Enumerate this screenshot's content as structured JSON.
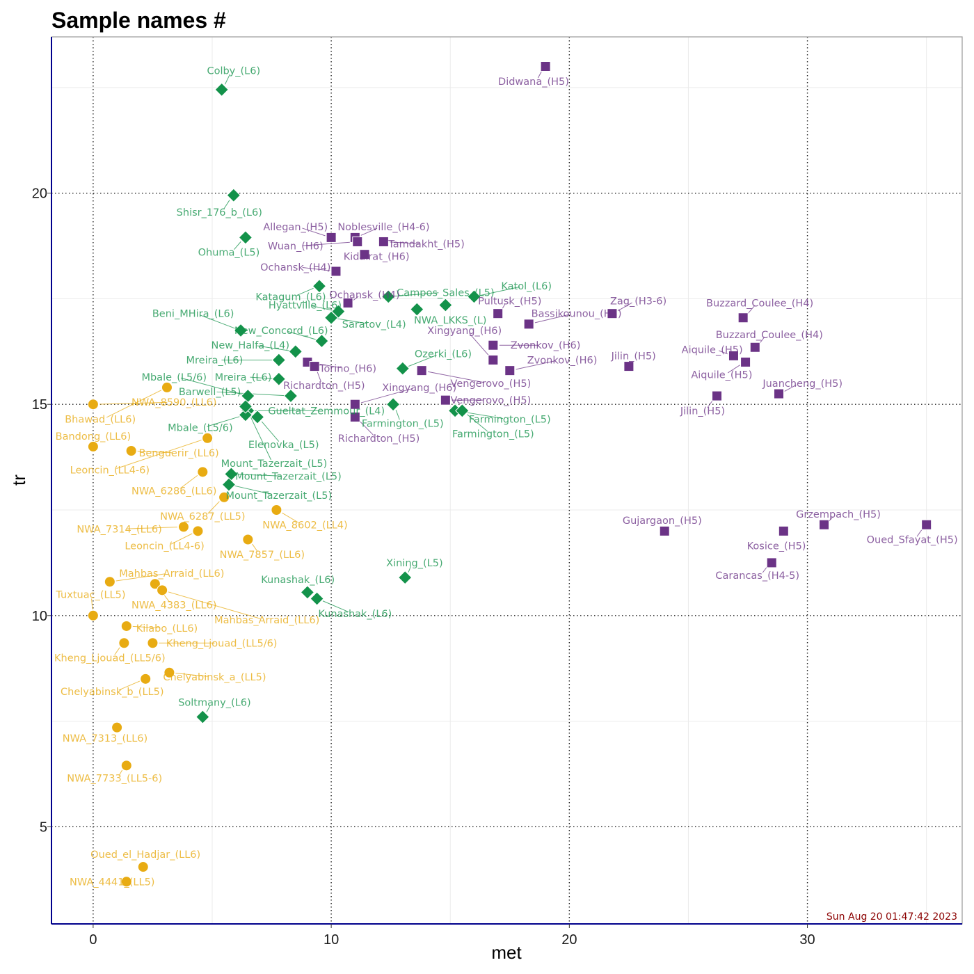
{
  "chart_data": {
    "type": "scatter",
    "title": "Sample names #",
    "xlabel": "met",
    "ylabel": "tr",
    "xlim": [
      -1.75,
      36.5
    ],
    "ylim": [
      2.7,
      23.7
    ],
    "x_ticks": [
      0,
      10,
      20,
      30
    ],
    "y_ticks": [
      5,
      10,
      15,
      20
    ],
    "grid": true,
    "legend": "none",
    "footer": "Sun Aug 20 01:47:42 2023",
    "colors": {
      "LL": "#e8ab12",
      "L": "#13924a",
      "H": "#6b3386"
    },
    "series": [
      {
        "group": "LL",
        "marker": "circle",
        "points": [
          {
            "x": 0.0,
            "y": 15.0,
            "label": "NWA_8590_(LL6)",
            "lx": 3.4,
            "ly": 15.05
          },
          {
            "x": 3.1,
            "y": 15.4,
            "label": "Bhawad_(LL6)",
            "lx": 0.3,
            "ly": 14.65
          },
          {
            "x": 0.0,
            "y": 14.0,
            "label": "Bandong_(LL6)",
            "lx": 0.0,
            "ly": 14.25
          },
          {
            "x": 1.6,
            "y": 13.9,
            "label": "Benguerir_(LL6)",
            "lx": 3.6,
            "ly": 13.85
          },
          {
            "x": 4.8,
            "y": 14.2,
            "label": "Leoncin_(LL4-6)",
            "lx": 0.7,
            "ly": 13.45
          },
          {
            "x": 4.6,
            "y": 13.4,
            "label": "NWA_6286_(LL6)",
            "lx": 3.4,
            "ly": 12.95
          },
          {
            "x": 5.5,
            "y": 12.8,
            "label": "NWA_6287_(LL5)",
            "lx": 4.6,
            "ly": 12.35
          },
          {
            "x": 7.7,
            "y": 12.5,
            "label": "NWA_8602_(LL4)",
            "lx": 8.9,
            "ly": 12.15
          },
          {
            "x": 3.8,
            "y": 12.1,
            "label": "NWA_7314_(LL6)",
            "lx": 1.1,
            "ly": 12.05
          },
          {
            "x": 4.4,
            "y": 12.0,
            "label": "Leoncin_(LL4-6)",
            "lx": 3.0,
            "ly": 11.65
          },
          {
            "x": 6.5,
            "y": 11.8,
            "label": "NWA_7857_(LL6)",
            "lx": 7.1,
            "ly": 11.45
          },
          {
            "x": 0.7,
            "y": 10.8,
            "label": "Mahbas_Arraid_(LL6)",
            "lx": 3.3,
            "ly": 11.0
          },
          {
            "x": 2.6,
            "y": 10.75,
            "label": "NWA_4383_(LL6)",
            "lx": 3.4,
            "ly": 10.25
          },
          {
            "x": 2.9,
            "y": 10.6,
            "label": "Mahbas_Arraid_(LL6)",
            "lx": 7.3,
            "ly": 9.9
          },
          {
            "x": 0.0,
            "y": 10.0,
            "label": "Tuxtuac_(LL5)",
            "lx": -0.1,
            "ly": 10.5
          },
          {
            "x": 1.4,
            "y": 9.75,
            "label": "Kilabo_(LL6)",
            "lx": 3.1,
            "ly": 9.7
          },
          {
            "x": 1.3,
            "y": 9.35,
            "label": "Kheng_Ljouad_(LL5/6)",
            "lx": 0.7,
            "ly": 9.0
          },
          {
            "x": 2.5,
            "y": 9.35,
            "label": "Kheng_Ljouad_(LL5/6)",
            "lx": 5.4,
            "ly": 9.35
          },
          {
            "x": 3.2,
            "y": 8.65,
            "label": "Chelyabinsk_a_(LL5)",
            "lx": 5.1,
            "ly": 8.55
          },
          {
            "x": 2.2,
            "y": 8.5,
            "label": "Chelyabinsk_b_(LL5)",
            "lx": 0.8,
            "ly": 8.2
          },
          {
            "x": 1.0,
            "y": 7.35,
            "label": "NWA_7313_(LL6)",
            "lx": 0.5,
            "ly": 7.1
          },
          {
            "x": 1.4,
            "y": 6.45,
            "label": "NWA_7733_(LL5-6)",
            "lx": 0.9,
            "ly": 6.15
          },
          {
            "x": 2.1,
            "y": 4.05,
            "label": "Oued_el_Hadjar_(LL6)",
            "lx": 2.2,
            "ly": 4.35
          },
          {
            "x": 1.4,
            "y": 3.7,
            "label": "NWA_4441_(LL5)",
            "lx": 0.8,
            "ly": 3.7
          }
        ]
      },
      {
        "group": "L",
        "marker": "diamond",
        "points": [
          {
            "x": 5.4,
            "y": 22.45,
            "label": "Colby_(L6)",
            "lx": 5.9,
            "ly": 22.9
          },
          {
            "x": 5.9,
            "y": 19.95,
            "label": "Shisr_176_b_(L6)",
            "lx": 5.3,
            "ly": 19.55
          },
          {
            "x": 6.4,
            "y": 18.95,
            "label": "Ohuma_(L5)",
            "lx": 5.7,
            "ly": 18.6
          },
          {
            "x": 9.5,
            "y": 17.8,
            "label": "Katagum_(L6)",
            "lx": 8.3,
            "ly": 17.55
          },
          {
            "x": 12.4,
            "y": 17.55,
            "label": "Campos_Sales_(L5)",
            "lx": 14.8,
            "ly": 17.65
          },
          {
            "x": 16.0,
            "y": 17.55,
            "label": "Katol_(L6)",
            "lx": 18.2,
            "ly": 17.8
          },
          {
            "x": 10.3,
            "y": 17.2,
            "label": "Hyattville_(L6)",
            "lx": 8.9,
            "ly": 17.35
          },
          {
            "x": 10.0,
            "y": 17.05,
            "label": "Saratov_(L4)",
            "lx": 11.8,
            "ly": 16.9
          },
          {
            "x": 13.6,
            "y": 17.25,
            "label": "",
            "lx": 0,
            "ly": 0
          },
          {
            "x": 14.8,
            "y": 17.35,
            "label": "NWA_LKKS_(L)",
            "lx": 15.0,
            "ly": 17.0
          },
          {
            "x": 6.2,
            "y": 16.75,
            "label": "Beni_MHira_(L6)",
            "lx": 4.2,
            "ly": 17.15
          },
          {
            "x": 9.6,
            "y": 16.5,
            "label": "New_Concord_(L6)",
            "lx": 7.9,
            "ly": 16.75
          },
          {
            "x": 8.5,
            "y": 16.25,
            "label": "New_Halfa_(L4)",
            "lx": 6.6,
            "ly": 16.4
          },
          {
            "x": 7.8,
            "y": 16.05,
            "label": "Mreira_(L6)",
            "lx": 5.1,
            "ly": 16.05
          },
          {
            "x": 13.0,
            "y": 15.85,
            "label": "Ozerki_(L6)",
            "lx": 14.7,
            "ly": 16.2
          },
          {
            "x": 7.8,
            "y": 15.6,
            "label": "Mreira_(L6)",
            "lx": 6.3,
            "ly": 15.65
          },
          {
            "x": 6.5,
            "y": 15.2,
            "label": "Mbale_(L5/6)",
            "lx": 3.4,
            "ly": 15.65
          },
          {
            "x": 8.3,
            "y": 15.2,
            "label": "Barwell_(L5)",
            "lx": 4.9,
            "ly": 15.3
          },
          {
            "x": 6.5,
            "y": 14.85,
            "label": "Gueltat_Zemmour_(L4)",
            "lx": 9.8,
            "ly": 14.85
          },
          {
            "x": 6.4,
            "y": 14.75,
            "label": "Mbale_(L5/6)",
            "lx": 4.5,
            "ly": 14.45
          },
          {
            "x": 6.9,
            "y": 14.7,
            "label": "Elenovka_(L5)",
            "lx": 8.0,
            "ly": 14.05
          },
          {
            "x": 12.6,
            "y": 15.0,
            "label": "Farmington_(L5)",
            "lx": 13.0,
            "ly": 14.55
          },
          {
            "x": 15.2,
            "y": 14.85,
            "label": "Farmington_(L5)",
            "lx": 17.5,
            "ly": 14.65
          },
          {
            "x": 15.5,
            "y": 14.85,
            "label": "Farmington_(L5)",
            "lx": 16.8,
            "ly": 14.3
          },
          {
            "x": 6.4,
            "y": 14.95,
            "label": "Mount_Tazerzait_(L5)",
            "lx": 7.6,
            "ly": 13.6
          },
          {
            "x": 5.8,
            "y": 13.35,
            "label": "Mount_Tazerzait_(L5)",
            "lx": 8.2,
            "ly": 13.3
          },
          {
            "x": 5.7,
            "y": 13.1,
            "label": "Mount_Tazerzait_(L5)",
            "lx": 7.8,
            "ly": 12.85
          },
          {
            "x": 13.1,
            "y": 10.9,
            "label": "Xining_(L5)",
            "lx": 13.5,
            "ly": 11.25
          },
          {
            "x": 9.0,
            "y": 10.55,
            "label": "Kunashak_(L6)",
            "lx": 8.6,
            "ly": 10.85
          },
          {
            "x": 9.4,
            "y": 10.4,
            "label": "Kunashak_(L6)",
            "lx": 11.0,
            "ly": 10.05
          },
          {
            "x": 4.6,
            "y": 7.6,
            "label": "Soltmany_(L6)",
            "lx": 5.1,
            "ly": 7.95
          }
        ]
      },
      {
        "group": "H",
        "marker": "square",
        "points": [
          {
            "x": 19.0,
            "y": 23.0,
            "label": "Didwana_(H5)",
            "lx": 18.5,
            "ly": 22.65
          },
          {
            "x": 10.0,
            "y": 18.95,
            "label": "Allegan_(H5)",
            "lx": 8.5,
            "ly": 19.2
          },
          {
            "x": 11.0,
            "y": 18.95,
            "label": "Noblesville_(H4-6)",
            "lx": 12.2,
            "ly": 19.2
          },
          {
            "x": 11.1,
            "y": 18.85,
            "label": "Wuan_(H6)",
            "lx": 8.5,
            "ly": 18.75
          },
          {
            "x": 12.2,
            "y": 18.85,
            "label": "Tamdakht_(H5)",
            "lx": 14.0,
            "ly": 18.8
          },
          {
            "x": 11.4,
            "y": 18.55,
            "label": "Kidairat_(H6)",
            "lx": 11.9,
            "ly": 18.5
          },
          {
            "x": 10.2,
            "y": 18.15,
            "label": "Ochansk_(H4)",
            "lx": 8.5,
            "ly": 18.25
          },
          {
            "x": 10.7,
            "y": 17.4,
            "label": "Ochansk_(H4)",
            "lx": 11.4,
            "ly": 17.6
          },
          {
            "x": 17.0,
            "y": 17.15,
            "label": "Pultusk_(H5)",
            "lx": 17.5,
            "ly": 17.45
          },
          {
            "x": 18.3,
            "y": 16.9,
            "label": "Bassikounou_(H5)",
            "lx": 20.3,
            "ly": 17.15
          },
          {
            "x": 21.8,
            "y": 17.15,
            "label": "Zag_(H3-6)",
            "lx": 22.9,
            "ly": 17.45
          },
          {
            "x": 27.3,
            "y": 17.05,
            "label": "Buzzard_Coulee_(H4)",
            "lx": 28.0,
            "ly": 17.4
          },
          {
            "x": 27.8,
            "y": 16.35,
            "label": "Buzzard_Coulee_(H4)",
            "lx": 28.4,
            "ly": 16.65
          },
          {
            "x": 16.8,
            "y": 16.4,
            "label": "Zvonkov_(H6)",
            "lx": 19.0,
            "ly": 16.4
          },
          {
            "x": 17.5,
            "y": 15.8,
            "label": "Zvonkov_(H6)",
            "lx": 19.7,
            "ly": 16.05
          },
          {
            "x": 16.8,
            "y": 16.05,
            "label": "Xingyang_(H6)",
            "lx": 15.6,
            "ly": 16.75
          },
          {
            "x": 26.9,
            "y": 16.15,
            "label": "Aiquile_(H5)",
            "lx": 26.0,
            "ly": 16.3
          },
          {
            "x": 27.4,
            "y": 16.0,
            "label": "Aiquile_(H5)",
            "lx": 26.4,
            "ly": 15.7
          },
          {
            "x": 22.5,
            "y": 15.9,
            "label": "Jilin_(H5)",
            "lx": 22.7,
            "ly": 16.15
          },
          {
            "x": 28.8,
            "y": 15.25,
            "label": "Juancheng_(H5)",
            "lx": 29.8,
            "ly": 15.5
          },
          {
            "x": 26.2,
            "y": 15.2,
            "label": "Jilin_(H5)",
            "lx": 25.6,
            "ly": 14.85
          },
          {
            "x": 9.0,
            "y": 16.0,
            "label": "Torino_(H6)",
            "lx": 10.7,
            "ly": 15.85
          },
          {
            "x": 9.3,
            "y": 15.9,
            "label": "Richardton_(H5)",
            "lx": 9.7,
            "ly": 15.45
          },
          {
            "x": 13.8,
            "y": 15.8,
            "label": "Vengerovo_(H5)",
            "lx": 16.7,
            "ly": 15.5
          },
          {
            "x": 14.8,
            "y": 15.1,
            "label": "Vengerovo_(H5)",
            "lx": 16.7,
            "ly": 15.1
          },
          {
            "x": 11.0,
            "y": 15.0,
            "label": "Xingyang_(H6)",
            "lx": 13.7,
            "ly": 15.4
          },
          {
            "x": 11.0,
            "y": 14.7,
            "label": "Richardton_(H5)",
            "lx": 12.0,
            "ly": 14.2
          },
          {
            "x": 24.0,
            "y": 12.0,
            "label": "Gujargaon_(H5)",
            "lx": 23.9,
            "ly": 12.25
          },
          {
            "x": 30.7,
            "y": 12.15,
            "label": "Grzempach_(H5)",
            "lx": 31.3,
            "ly": 12.4
          },
          {
            "x": 35.0,
            "y": 12.15,
            "label": "Oued_Sfayat_(H5)",
            "lx": 34.4,
            "ly": 11.8
          },
          {
            "x": 29.0,
            "y": 12.0,
            "label": "Kosice_(H5)",
            "lx": 28.7,
            "ly": 11.65
          },
          {
            "x": 28.5,
            "y": 11.25,
            "label": "Carancas_(H4-5)",
            "lx": 27.9,
            "ly": 10.95
          }
        ]
      }
    ]
  }
}
